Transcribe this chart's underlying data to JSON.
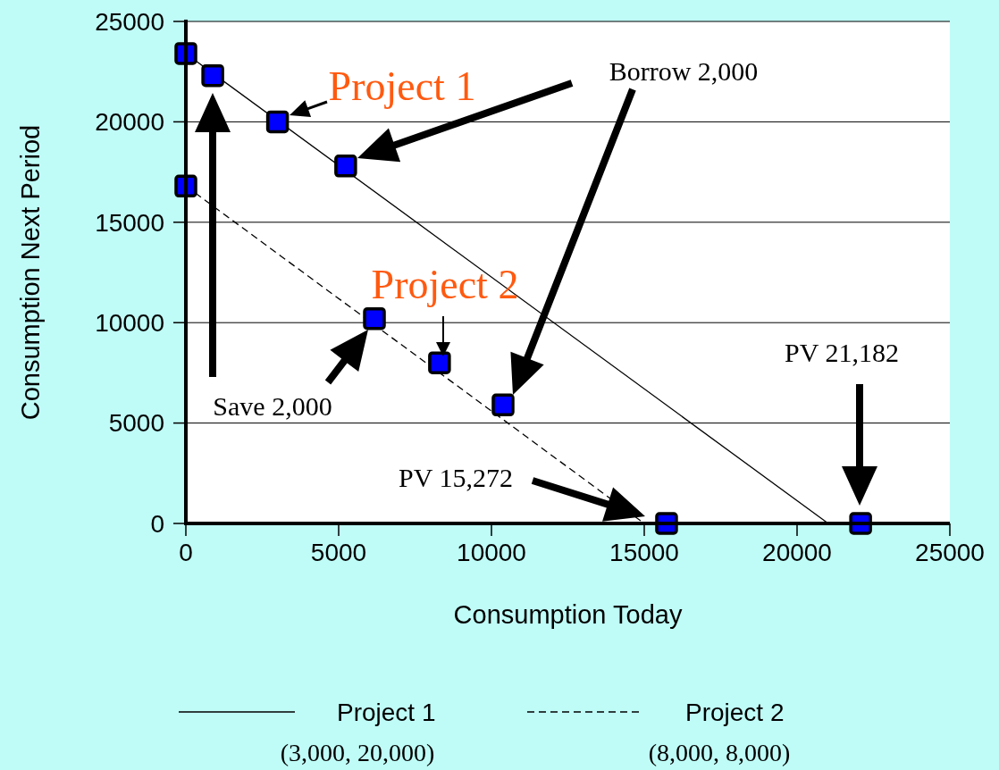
{
  "chart_data": {
    "type": "line",
    "xlabel": "Consumption Today",
    "ylabel": "Consumption Next Period",
    "xlim": [
      0,
      25000
    ],
    "xticks": [
      0,
      5000,
      10000,
      15000,
      20000,
      25000
    ],
    "ylim": [
      0,
      25000
    ],
    "yticks": [
      0,
      5000,
      10000,
      15000,
      20000,
      25000
    ],
    "grid": "y",
    "legend": "bottom",
    "series": [
      {
        "name": "Project 1",
        "color": "#000000",
        "line_style": "solid",
        "marker": "none",
        "x": [
          0,
          21020
        ],
        "values": [
          23400,
          0
        ]
      },
      {
        "name": "Project 2",
        "color": "#000000",
        "line_style": "dashed",
        "marker": "none",
        "x": [
          0,
          15000
        ],
        "values": [
          16800,
          0
        ]
      },
      {
        "type": "scatter",
        "color": "#0000ff",
        "marker": "square",
        "x": [
          0,
          880,
          3000,
          5230,
          0,
          6170,
          8300,
          10380,
          15730,
          22080
        ],
        "values": [
          23400,
          22300,
          20000,
          17800,
          16800,
          10200,
          8000,
          5900,
          0,
          0
        ]
      }
    ],
    "annotations": [
      "Project 1",
      "Borrow 2,000",
      "Project 2",
      "Save 2,000",
      "PV 15,272",
      "PV 21,182",
      "(3,000, 20,000)",
      "(8,000, 8,000)"
    ]
  }
}
